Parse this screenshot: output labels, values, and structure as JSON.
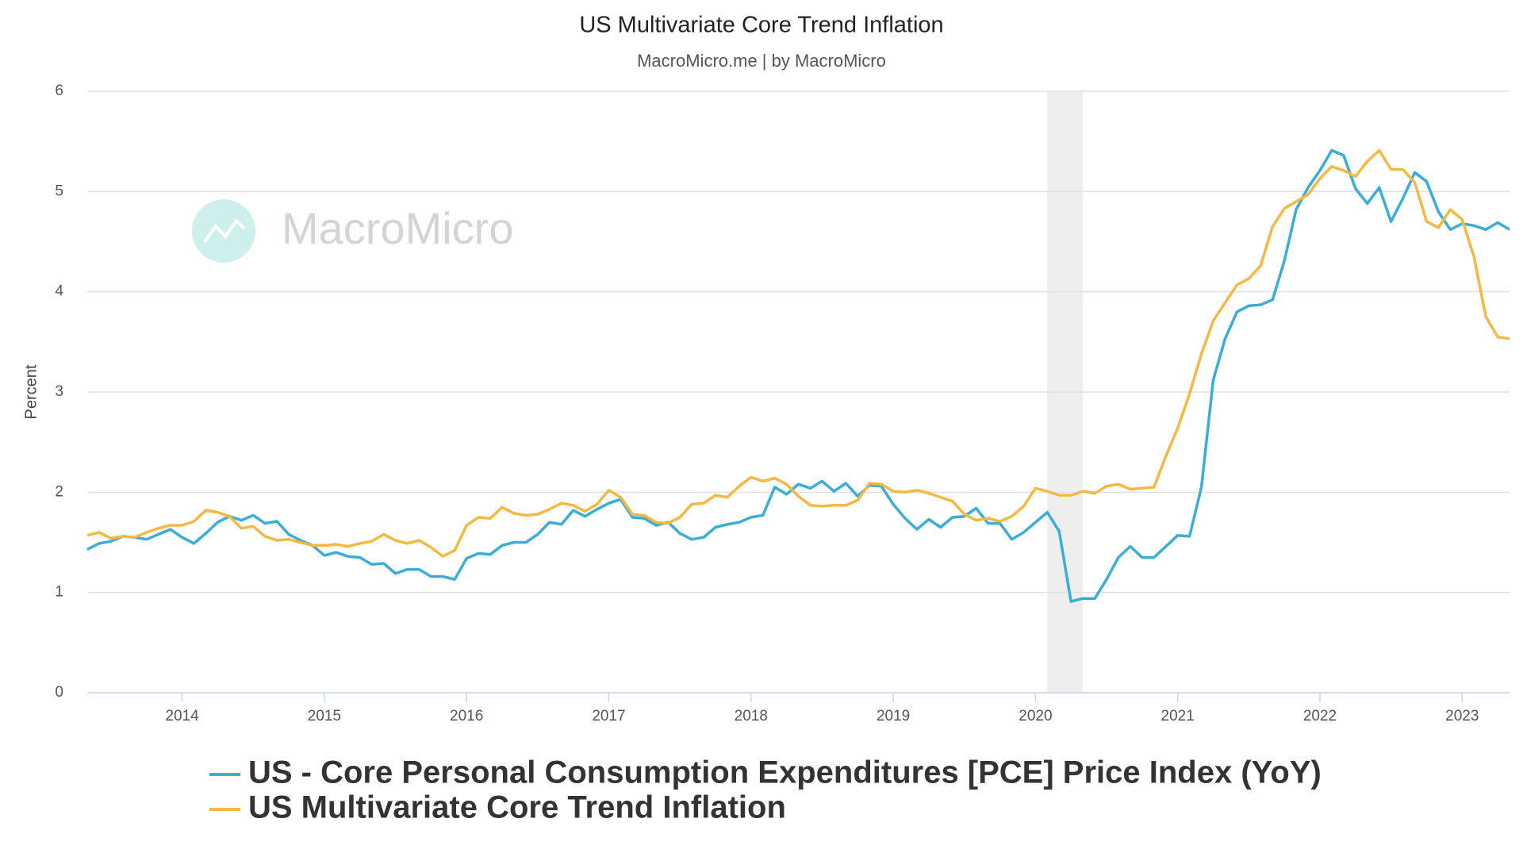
{
  "chart_data": {
    "type": "line",
    "title": "US Multivariate Core Trend Inflation",
    "subtitle": "MacroMicro.me | by MacroMicro",
    "watermark": "MacroMicro",
    "y_label": "Percent",
    "x": [
      2013.333,
      2013.417,
      2013.5,
      2013.583,
      2013.667,
      2013.75,
      2013.833,
      2013.917,
      2014,
      2014.083,
      2014.167,
      2014.25,
      2014.333,
      2014.417,
      2014.5,
      2014.583,
      2014.667,
      2014.75,
      2014.833,
      2014.917,
      2015,
      2015.083,
      2015.167,
      2015.25,
      2015.333,
      2015.417,
      2015.5,
      2015.583,
      2015.667,
      2015.75,
      2015.833,
      2015.917,
      2016,
      2016.083,
      2016.167,
      2016.25,
      2016.333,
      2016.417,
      2016.5,
      2016.583,
      2016.667,
      2016.75,
      2016.833,
      2016.917,
      2017,
      2017.083,
      2017.167,
      2017.25,
      2017.333,
      2017.417,
      2017.5,
      2017.583,
      2017.667,
      2017.75,
      2017.833,
      2017.917,
      2018,
      2018.083,
      2018.167,
      2018.25,
      2018.333,
      2018.417,
      2018.5,
      2018.583,
      2018.667,
      2018.75,
      2018.833,
      2018.917,
      2019,
      2019.083,
      2019.167,
      2019.25,
      2019.333,
      2019.417,
      2019.5,
      2019.583,
      2019.667,
      2019.75,
      2019.833,
      2019.917,
      2020,
      2020.083,
      2020.167,
      2020.25,
      2020.333,
      2020.417,
      2020.5,
      2020.583,
      2020.667,
      2020.75,
      2020.833,
      2020.917,
      2021,
      2021.083,
      2021.167,
      2021.25,
      2021.333,
      2021.417,
      2021.5,
      2021.583,
      2021.667,
      2021.75,
      2021.833,
      2021.917,
      2022,
      2022.083,
      2022.167,
      2022.25,
      2022.333,
      2022.417,
      2022.5,
      2022.583,
      2022.667,
      2022.75,
      2022.833,
      2022.917,
      2023,
      2023.083,
      2023.167,
      2023.25,
      2023.333
    ],
    "series": [
      {
        "name": "US - Core Personal Consumption Expenditures [PCE] Price Index (YoY)",
        "color": "#3aaed8",
        "values": [
          1.43,
          1.49,
          1.51,
          1.56,
          1.55,
          1.53,
          1.58,
          1.63,
          1.55,
          1.49,
          1.59,
          1.7,
          1.76,
          1.72,
          1.77,
          1.69,
          1.71,
          1.58,
          1.52,
          1.47,
          1.37,
          1.4,
          1.36,
          1.35,
          1.28,
          1.29,
          1.19,
          1.23,
          1.23,
          1.16,
          1.16,
          1.13,
          1.34,
          1.39,
          1.38,
          1.47,
          1.5,
          1.5,
          1.58,
          1.7,
          1.68,
          1.82,
          1.76,
          1.83,
          1.89,
          1.93,
          1.75,
          1.74,
          1.67,
          1.7,
          1.59,
          1.53,
          1.55,
          1.65,
          1.68,
          1.7,
          1.75,
          1.77,
          2.05,
          1.98,
          2.08,
          2.04,
          2.11,
          2.01,
          2.09,
          1.96,
          2.07,
          2.06,
          1.88,
          1.74,
          1.63,
          1.73,
          1.65,
          1.75,
          1.76,
          1.84,
          1.69,
          1.69,
          1.53,
          1.6,
          1.7,
          1.8,
          1.61,
          0.91,
          0.94,
          0.94,
          1.13,
          1.35,
          1.46,
          1.35,
          1.35,
          1.46,
          1.57,
          1.56,
          2.05,
          3.12,
          3.53,
          3.8,
          3.86,
          3.87,
          3.92,
          4.31,
          4.82,
          5.04,
          5.21,
          5.41,
          5.36,
          5.03,
          4.88,
          5.04,
          4.7,
          4.93,
          5.19,
          5.1,
          4.8,
          4.62,
          4.68,
          4.66,
          4.62,
          4.69,
          4.62
        ]
      },
      {
        "name": "US Multivariate Core Trend Inflation",
        "color": "#f5b942",
        "values": [
          1.57,
          1.6,
          1.54,
          1.56,
          1.55,
          1.6,
          1.64,
          1.67,
          1.67,
          1.71,
          1.82,
          1.8,
          1.76,
          1.64,
          1.66,
          1.56,
          1.52,
          1.53,
          1.5,
          1.47,
          1.47,
          1.48,
          1.46,
          1.49,
          1.51,
          1.58,
          1.52,
          1.49,
          1.52,
          1.45,
          1.36,
          1.42,
          1.67,
          1.75,
          1.74,
          1.85,
          1.79,
          1.77,
          1.78,
          1.83,
          1.89,
          1.87,
          1.81,
          1.88,
          2.02,
          1.95,
          1.78,
          1.77,
          1.7,
          1.69,
          1.75,
          1.88,
          1.89,
          1.97,
          1.95,
          2.06,
          2.15,
          2.11,
          2.14,
          2.08,
          1.96,
          1.87,
          1.86,
          1.87,
          1.87,
          1.92,
          2.09,
          2.08,
          2.01,
          2.0,
          2.02,
          1.99,
          1.95,
          1.91,
          1.78,
          1.72,
          1.74,
          1.71,
          1.76,
          1.86,
          2.04,
          2.01,
          1.97,
          1.97,
          2.01,
          1.99,
          2.06,
          2.08,
          2.03,
          2.04,
          2.05,
          2.36,
          2.64,
          2.98,
          3.38,
          3.71,
          3.89,
          4.07,
          4.13,
          4.26,
          4.65,
          4.83,
          4.9,
          4.97,
          5.13,
          5.25,
          5.21,
          5.15,
          5.3,
          5.41,
          5.22,
          5.22,
          5.09,
          4.7,
          4.64,
          4.82,
          4.72,
          4.35,
          3.75,
          3.55,
          3.53
        ]
      }
    ],
    "xlim": [
      2013.333,
      2023.333
    ],
    "xticks": [
      2014,
      2015,
      2016,
      2017,
      2018,
      2019,
      2020,
      2021,
      2022,
      2023
    ],
    "ylim": [
      0,
      6
    ],
    "yticks": [
      0,
      1,
      2,
      3,
      4,
      5,
      6
    ],
    "grid": true,
    "shaded_periods": [
      [
        2020.083,
        2020.333
      ]
    ],
    "legend": "bottom"
  }
}
